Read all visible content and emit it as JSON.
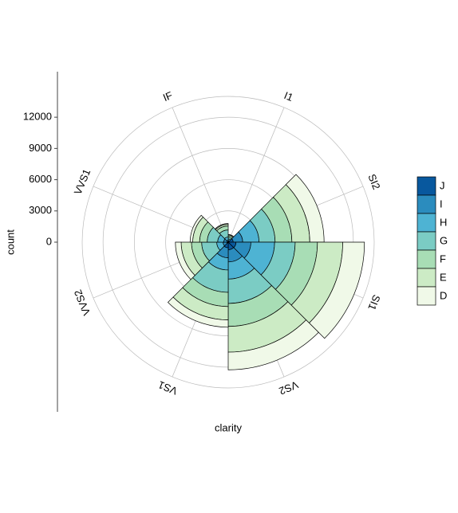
{
  "chart_data": {
    "type": "polar-stacked-bar",
    "x_label": "clarity",
    "y_label": "count",
    "categories": [
      "I1",
      "SI2",
      "SI1",
      "VS2",
      "VS1",
      "VVS2",
      "VVS1",
      "IF"
    ],
    "series": [
      {
        "name": "J",
        "color": "#08589e",
        "values": [
          50,
          479,
          750,
          731,
          542,
          131,
          74,
          51
        ]
      },
      {
        "name": "I",
        "color": "#2b8cbe",
        "values": [
          92,
          912,
          1424,
          1169,
          962,
          365,
          355,
          143
        ]
      },
      {
        "name": "H",
        "color": "#4eb3d3",
        "values": [
          162,
          1563,
          2275,
          1643,
          1169,
          608,
          585,
          299
        ]
      },
      {
        "name": "G",
        "color": "#7bccc4",
        "values": [
          150,
          1548,
          1976,
          2347,
          2148,
          1443,
          999,
          681
        ]
      },
      {
        "name": "F",
        "color": "#a8ddb5",
        "values": [
          143,
          1609,
          2131,
          2201,
          1364,
          975,
          734,
          385
        ]
      },
      {
        "name": "E",
        "color": "#ccebc5",
        "values": [
          102,
          1713,
          2426,
          2470,
          1281,
          991,
          656,
          158
        ]
      },
      {
        "name": "D",
        "color": "#f0f9e8",
        "values": [
          42,
          1370,
          2083,
          1697,
          705,
          553,
          252,
          73
        ]
      }
    ],
    "ylim": [
      0,
      14000
    ],
    "yticks": [
      0,
      3000,
      6000,
      9000,
      12000
    ],
    "grid": true
  }
}
